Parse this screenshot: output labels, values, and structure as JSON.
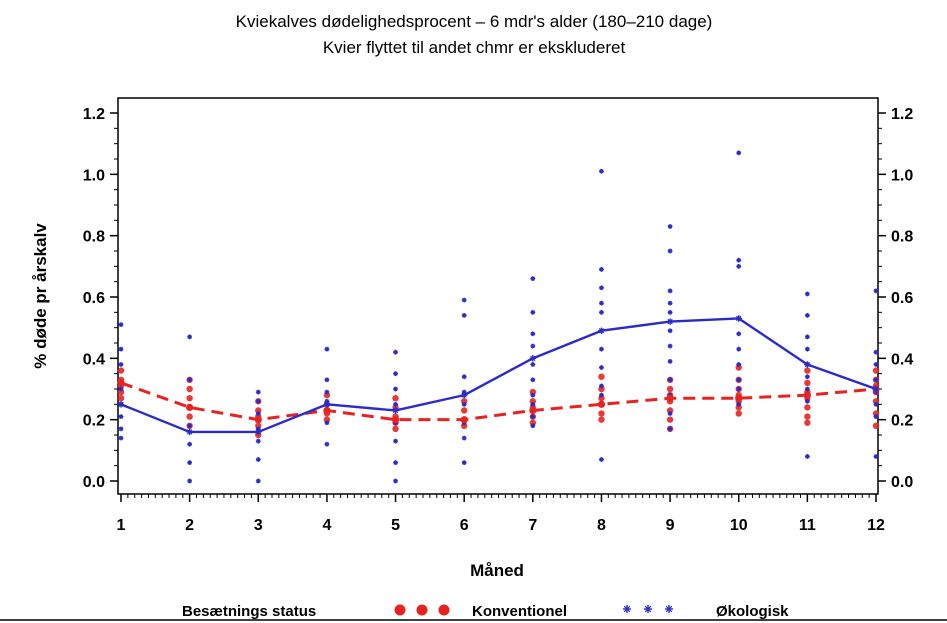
{
  "chart_data": {
    "type": "line",
    "title": "Kviekalves dødelighedsprocent – 6 mdr's alder (180–210 dage)",
    "subtitle": "Kvier flyttet til andet chmr er ekskluderet",
    "xlabel": "Måned",
    "ylabel": "% døde pr årskalv",
    "categories": [
      "1",
      "2",
      "3",
      "4",
      "5",
      "6",
      "7",
      "8",
      "9",
      "10",
      "11",
      "12"
    ],
    "x": [
      1,
      2,
      3,
      4,
      5,
      6,
      7,
      8,
      9,
      10,
      11,
      12
    ],
    "ylim": [
      0,
      1.2
    ],
    "y_ticks": [
      "0.0",
      "0.2",
      "0.4",
      "0.6",
      "0.8",
      "1.0",
      "1.2"
    ],
    "grid": false,
    "legend_position": "bottom",
    "legend_title": "Besætnings status",
    "series": [
      {
        "name": "Konventionel",
        "color": "#e8231f",
        "line_style": "dashed",
        "marker": "dot",
        "values": [
          0.32,
          0.24,
          0.2,
          0.23,
          0.2,
          0.2,
          0.23,
          0.25,
          0.27,
          0.27,
          0.28,
          0.3
        ],
        "points": [
          [
            1,
            0.36
          ],
          [
            1,
            0.33
          ],
          [
            1,
            0.31
          ],
          [
            1,
            0.29
          ],
          [
            1,
            0.27
          ],
          [
            2,
            0.33
          ],
          [
            2,
            0.3
          ],
          [
            2,
            0.27
          ],
          [
            2,
            0.24
          ],
          [
            2,
            0.21
          ],
          [
            2,
            0.18
          ],
          [
            3,
            0.26
          ],
          [
            3,
            0.23
          ],
          [
            3,
            0.21
          ],
          [
            3,
            0.18
          ],
          [
            3,
            0.15
          ],
          [
            4,
            0.28
          ],
          [
            4,
            0.25
          ],
          [
            4,
            0.22
          ],
          [
            4,
            0.2
          ],
          [
            5,
            0.27
          ],
          [
            5,
            0.24
          ],
          [
            5,
            0.21
          ],
          [
            5,
            0.19
          ],
          [
            5,
            0.17
          ],
          [
            6,
            0.26
          ],
          [
            6,
            0.23
          ],
          [
            6,
            0.2
          ],
          [
            6,
            0.18
          ],
          [
            7,
            0.29
          ],
          [
            7,
            0.26
          ],
          [
            7,
            0.24
          ],
          [
            7,
            0.21
          ],
          [
            7,
            0.19
          ],
          [
            8,
            0.34
          ],
          [
            8,
            0.3
          ],
          [
            8,
            0.27
          ],
          [
            8,
            0.25
          ],
          [
            8,
            0.22
          ],
          [
            8,
            0.2
          ],
          [
            9,
            0.33
          ],
          [
            9,
            0.3
          ],
          [
            9,
            0.28
          ],
          [
            9,
            0.26
          ],
          [
            9,
            0.23
          ],
          [
            9,
            0.2
          ],
          [
            9,
            0.17
          ],
          [
            10,
            0.37
          ],
          [
            10,
            0.33
          ],
          [
            10,
            0.3
          ],
          [
            10,
            0.28
          ],
          [
            10,
            0.26
          ],
          [
            10,
            0.24
          ],
          [
            10,
            0.22
          ],
          [
            11,
            0.36
          ],
          [
            11,
            0.32
          ],
          [
            11,
            0.29
          ],
          [
            11,
            0.27
          ],
          [
            11,
            0.24
          ],
          [
            11,
            0.21
          ],
          [
            11,
            0.19
          ],
          [
            12,
            0.36
          ],
          [
            12,
            0.33
          ],
          [
            12,
            0.31
          ],
          [
            12,
            0.29
          ],
          [
            12,
            0.26
          ],
          [
            12,
            0.22
          ],
          [
            12,
            0.18
          ]
        ]
      },
      {
        "name": "Økologisk",
        "color": "#2b2bcc",
        "line_style": "solid",
        "marker": "star",
        "values": [
          0.25,
          0.16,
          0.16,
          0.25,
          0.23,
          0.28,
          0.4,
          0.49,
          0.52,
          0.53,
          0.38,
          0.3
        ],
        "points": [
          [
            1,
            0.51
          ],
          [
            1,
            0.43
          ],
          [
            1,
            0.38
          ],
          [
            1,
            0.3
          ],
          [
            1,
            0.25
          ],
          [
            1,
            0.21
          ],
          [
            1,
            0.17
          ],
          [
            1,
            0.14
          ],
          [
            2,
            0.47
          ],
          [
            2,
            0.33
          ],
          [
            2,
            0.24
          ],
          [
            2,
            0.18
          ],
          [
            2,
            0.12
          ],
          [
            2,
            0.06
          ],
          [
            2,
            0.0
          ],
          [
            3,
            0.29
          ],
          [
            3,
            0.26
          ],
          [
            3,
            0.22
          ],
          [
            3,
            0.17
          ],
          [
            3,
            0.13
          ],
          [
            3,
            0.07
          ],
          [
            3,
            0.0
          ],
          [
            4,
            0.43
          ],
          [
            4,
            0.33
          ],
          [
            4,
            0.29
          ],
          [
            4,
            0.26
          ],
          [
            4,
            0.23
          ],
          [
            4,
            0.19
          ],
          [
            4,
            0.12
          ],
          [
            5,
            0.42
          ],
          [
            5,
            0.35
          ],
          [
            5,
            0.3
          ],
          [
            5,
            0.25
          ],
          [
            5,
            0.19
          ],
          [
            5,
            0.13
          ],
          [
            5,
            0.06
          ],
          [
            5,
            0.0
          ],
          [
            6,
            0.59
          ],
          [
            6,
            0.54
          ],
          [
            6,
            0.34
          ],
          [
            6,
            0.29
          ],
          [
            6,
            0.25
          ],
          [
            6,
            0.19
          ],
          [
            6,
            0.14
          ],
          [
            6,
            0.06
          ],
          [
            7,
            0.66
          ],
          [
            7,
            0.55
          ],
          [
            7,
            0.48
          ],
          [
            7,
            0.44
          ],
          [
            7,
            0.38
          ],
          [
            7,
            0.33
          ],
          [
            7,
            0.28
          ],
          [
            7,
            0.25
          ],
          [
            7,
            0.21
          ],
          [
            7,
            0.18
          ],
          [
            8,
            1.01
          ],
          [
            8,
            0.69
          ],
          [
            8,
            0.63
          ],
          [
            8,
            0.58
          ],
          [
            8,
            0.55
          ],
          [
            8,
            0.49
          ],
          [
            8,
            0.43
          ],
          [
            8,
            0.37
          ],
          [
            8,
            0.31
          ],
          [
            8,
            0.28
          ],
          [
            8,
            0.07
          ],
          [
            9,
            0.83
          ],
          [
            9,
            0.75
          ],
          [
            9,
            0.62
          ],
          [
            9,
            0.58
          ],
          [
            9,
            0.55
          ],
          [
            9,
            0.49
          ],
          [
            9,
            0.44
          ],
          [
            9,
            0.39
          ],
          [
            9,
            0.33
          ],
          [
            9,
            0.28
          ],
          [
            9,
            0.22
          ],
          [
            9,
            0.17
          ],
          [
            10,
            1.07
          ],
          [
            10,
            0.72
          ],
          [
            10,
            0.7
          ],
          [
            10,
            0.53
          ],
          [
            10,
            0.48
          ],
          [
            10,
            0.43
          ],
          [
            10,
            0.38
          ],
          [
            10,
            0.33
          ],
          [
            10,
            0.3
          ],
          [
            10,
            0.25
          ],
          [
            11,
            0.61
          ],
          [
            11,
            0.54
          ],
          [
            11,
            0.47
          ],
          [
            11,
            0.43
          ],
          [
            11,
            0.38
          ],
          [
            11,
            0.34
          ],
          [
            11,
            0.3
          ],
          [
            11,
            0.26
          ],
          [
            11,
            0.08
          ],
          [
            12,
            0.62
          ],
          [
            12,
            0.42
          ],
          [
            12,
            0.38
          ],
          [
            12,
            0.33
          ],
          [
            12,
            0.29
          ],
          [
            12,
            0.25
          ],
          [
            12,
            0.21
          ],
          [
            12,
            0.08
          ]
        ]
      }
    ]
  }
}
